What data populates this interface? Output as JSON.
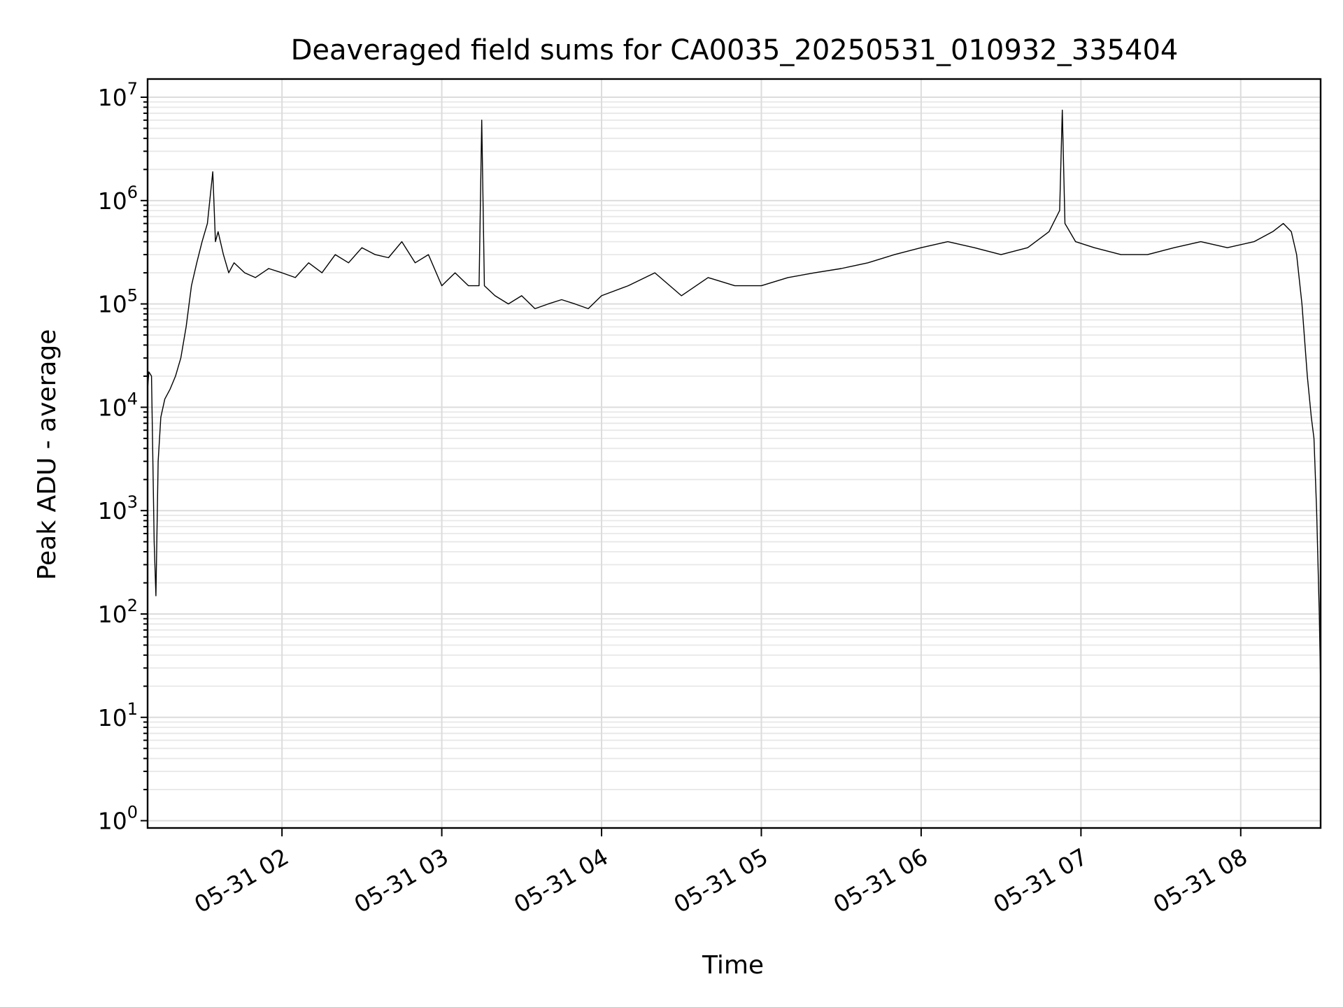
{
  "chart_data": {
    "type": "line",
    "title": "Deaveraged field sums for CA0035_20250531_010932_335404",
    "xlabel": "Time",
    "ylabel": "Peak ADU - average",
    "yscale": "log",
    "ylim": [
      0.85,
      15000000
    ],
    "xlim": [
      "2025-05-31 01:09:32",
      "2025-05-31 08:30:00"
    ],
    "grid": "major and minor",
    "x_tick_labels": [
      "05-31 02",
      "05-31 03",
      "05-31 04",
      "05-31 05",
      "05-31 06",
      "05-31 07",
      "05-31 08"
    ],
    "y_ticks": [
      {
        "base": "10",
        "exp": "0"
      },
      {
        "base": "10",
        "exp": "1"
      },
      {
        "base": "10",
        "exp": "2"
      },
      {
        "base": "10",
        "exp": "3"
      },
      {
        "base": "10",
        "exp": "4"
      },
      {
        "base": "10",
        "exp": "5"
      },
      {
        "base": "10",
        "exp": "6"
      },
      {
        "base": "10",
        "exp": "7"
      }
    ],
    "series": [
      {
        "color": "#000000",
        "x": [
          "2025-05-31 01:09:32",
          "2025-05-31 01:10:00",
          "2025-05-31 01:11:00",
          "2025-05-31 01:12:00",
          "2025-05-31 01:12:40",
          "2025-05-31 01:13:30",
          "2025-05-31 01:14:30",
          "2025-05-31 01:16:00",
          "2025-05-31 01:18:00",
          "2025-05-31 01:20:00",
          "2025-05-31 01:22:00",
          "2025-05-31 01:24:00",
          "2025-05-31 01:26:00",
          "2025-05-31 01:28:00",
          "2025-05-31 01:30:00",
          "2025-05-31 01:32:00",
          "2025-05-31 01:34:00",
          "2025-05-31 01:35:00",
          "2025-05-31 01:36:00",
          "2025-05-31 01:38:00",
          "2025-05-31 01:40:00",
          "2025-05-31 01:42:00",
          "2025-05-31 01:46:00",
          "2025-05-31 01:50:00",
          "2025-05-31 01:55:00",
          "2025-05-31 02:00:00",
          "2025-05-31 02:05:00",
          "2025-05-31 02:10:00",
          "2025-05-31 02:15:00",
          "2025-05-31 02:20:00",
          "2025-05-31 02:25:00",
          "2025-05-31 02:30:00",
          "2025-05-31 02:35:00",
          "2025-05-31 02:40:00",
          "2025-05-31 02:45:00",
          "2025-05-31 02:50:00",
          "2025-05-31 02:55:00",
          "2025-05-31 03:00:00",
          "2025-05-31 03:05:00",
          "2025-05-31 03:10:00",
          "2025-05-31 03:14:00",
          "2025-05-31 03:15:00",
          "2025-05-31 03:16:00",
          "2025-05-31 03:20:00",
          "2025-05-31 03:25:00",
          "2025-05-31 03:30:00",
          "2025-05-31 03:35:00",
          "2025-05-31 03:40:00",
          "2025-05-31 03:45:00",
          "2025-05-31 03:50:00",
          "2025-05-31 03:55:00",
          "2025-05-31 04:00:00",
          "2025-05-31 04:10:00",
          "2025-05-31 04:20:00",
          "2025-05-31 04:30:00",
          "2025-05-31 04:40:00",
          "2025-05-31 04:50:00",
          "2025-05-31 05:00:00",
          "2025-05-31 05:10:00",
          "2025-05-31 05:20:00",
          "2025-05-31 05:30:00",
          "2025-05-31 05:40:00",
          "2025-05-31 05:50:00",
          "2025-05-31 06:00:00",
          "2025-05-31 06:10:00",
          "2025-05-31 06:20:00",
          "2025-05-31 06:30:00",
          "2025-05-31 06:40:00",
          "2025-05-31 06:48:00",
          "2025-05-31 06:52:00",
          "2025-05-31 06:53:00",
          "2025-05-31 06:54:00",
          "2025-05-31 06:58:00",
          "2025-05-31 07:05:00",
          "2025-05-31 07:15:00",
          "2025-05-31 07:25:00",
          "2025-05-31 07:35:00",
          "2025-05-31 07:45:00",
          "2025-05-31 07:55:00",
          "2025-05-31 08:05:00",
          "2025-05-31 08:12:00",
          "2025-05-31 08:16:00",
          "2025-05-31 08:19:00",
          "2025-05-31 08:21:00",
          "2025-05-31 08:23:00",
          "2025-05-31 08:25:00",
          "2025-05-31 08:26:30",
          "2025-05-31 08:27:30",
          "2025-05-31 08:28:30",
          "2025-05-31 08:29:30",
          "2025-05-31 08:30:00"
        ],
        "y": [
          15000,
          22000,
          20000,
          500,
          150,
          3000,
          8000,
          12000,
          15000,
          20000,
          30000,
          60000,
          150000,
          250000,
          400000,
          600000,
          1900000,
          400000,
          500000,
          300000,
          200000,
          250000,
          200000,
          180000,
          220000,
          200000,
          180000,
          250000,
          200000,
          300000,
          250000,
          350000,
          300000,
          280000,
          400000,
          250000,
          300000,
          150000,
          200000,
          150000,
          150000,
          6000000,
          150000,
          120000,
          100000,
          120000,
          90000,
          100000,
          110000,
          100000,
          90000,
          120000,
          150000,
          200000,
          120000,
          180000,
          150000,
          150000,
          180000,
          200000,
          220000,
          250000,
          300000,
          350000,
          400000,
          350000,
          300000,
          350000,
          500000,
          800000,
          7500000,
          600000,
          400000,
          350000,
          300000,
          300000,
          350000,
          400000,
          350000,
          400000,
          500000,
          600000,
          500000,
          300000,
          100000,
          20000,
          8000,
          5000,
          1000,
          100,
          20
        ]
      }
    ]
  }
}
